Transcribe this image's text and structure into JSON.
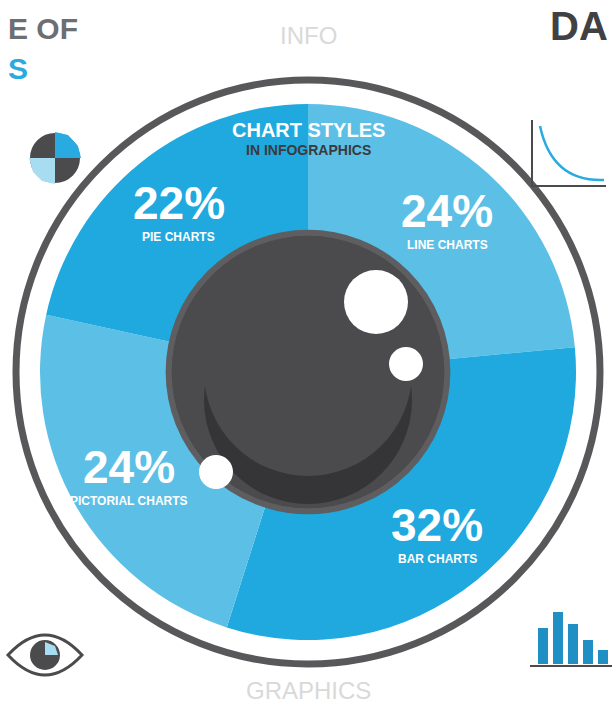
{
  "chart_data": {
    "type": "pie",
    "title": "CHART STYLES",
    "subtitle": "IN INFOGRAPHICS",
    "categories": [
      "LINE CHARTS",
      "BAR CHARTS",
      "PICTORIAL CHARTS",
      "PIE CHARTS"
    ],
    "values": [
      24,
      32,
      24,
      22
    ],
    "value_labels": [
      "24%",
      "32%",
      "24%",
      "22%"
    ],
    "colors": [
      "#5cbfe6",
      "#1fa9de",
      "#5cbfe6",
      "#1fa9de"
    ],
    "data_labels": true
  },
  "header_fragments": [
    "E OF",
    "S",
    "DA"
  ],
  "background_words": [
    "INFO",
    "GRAPHICS"
  ]
}
